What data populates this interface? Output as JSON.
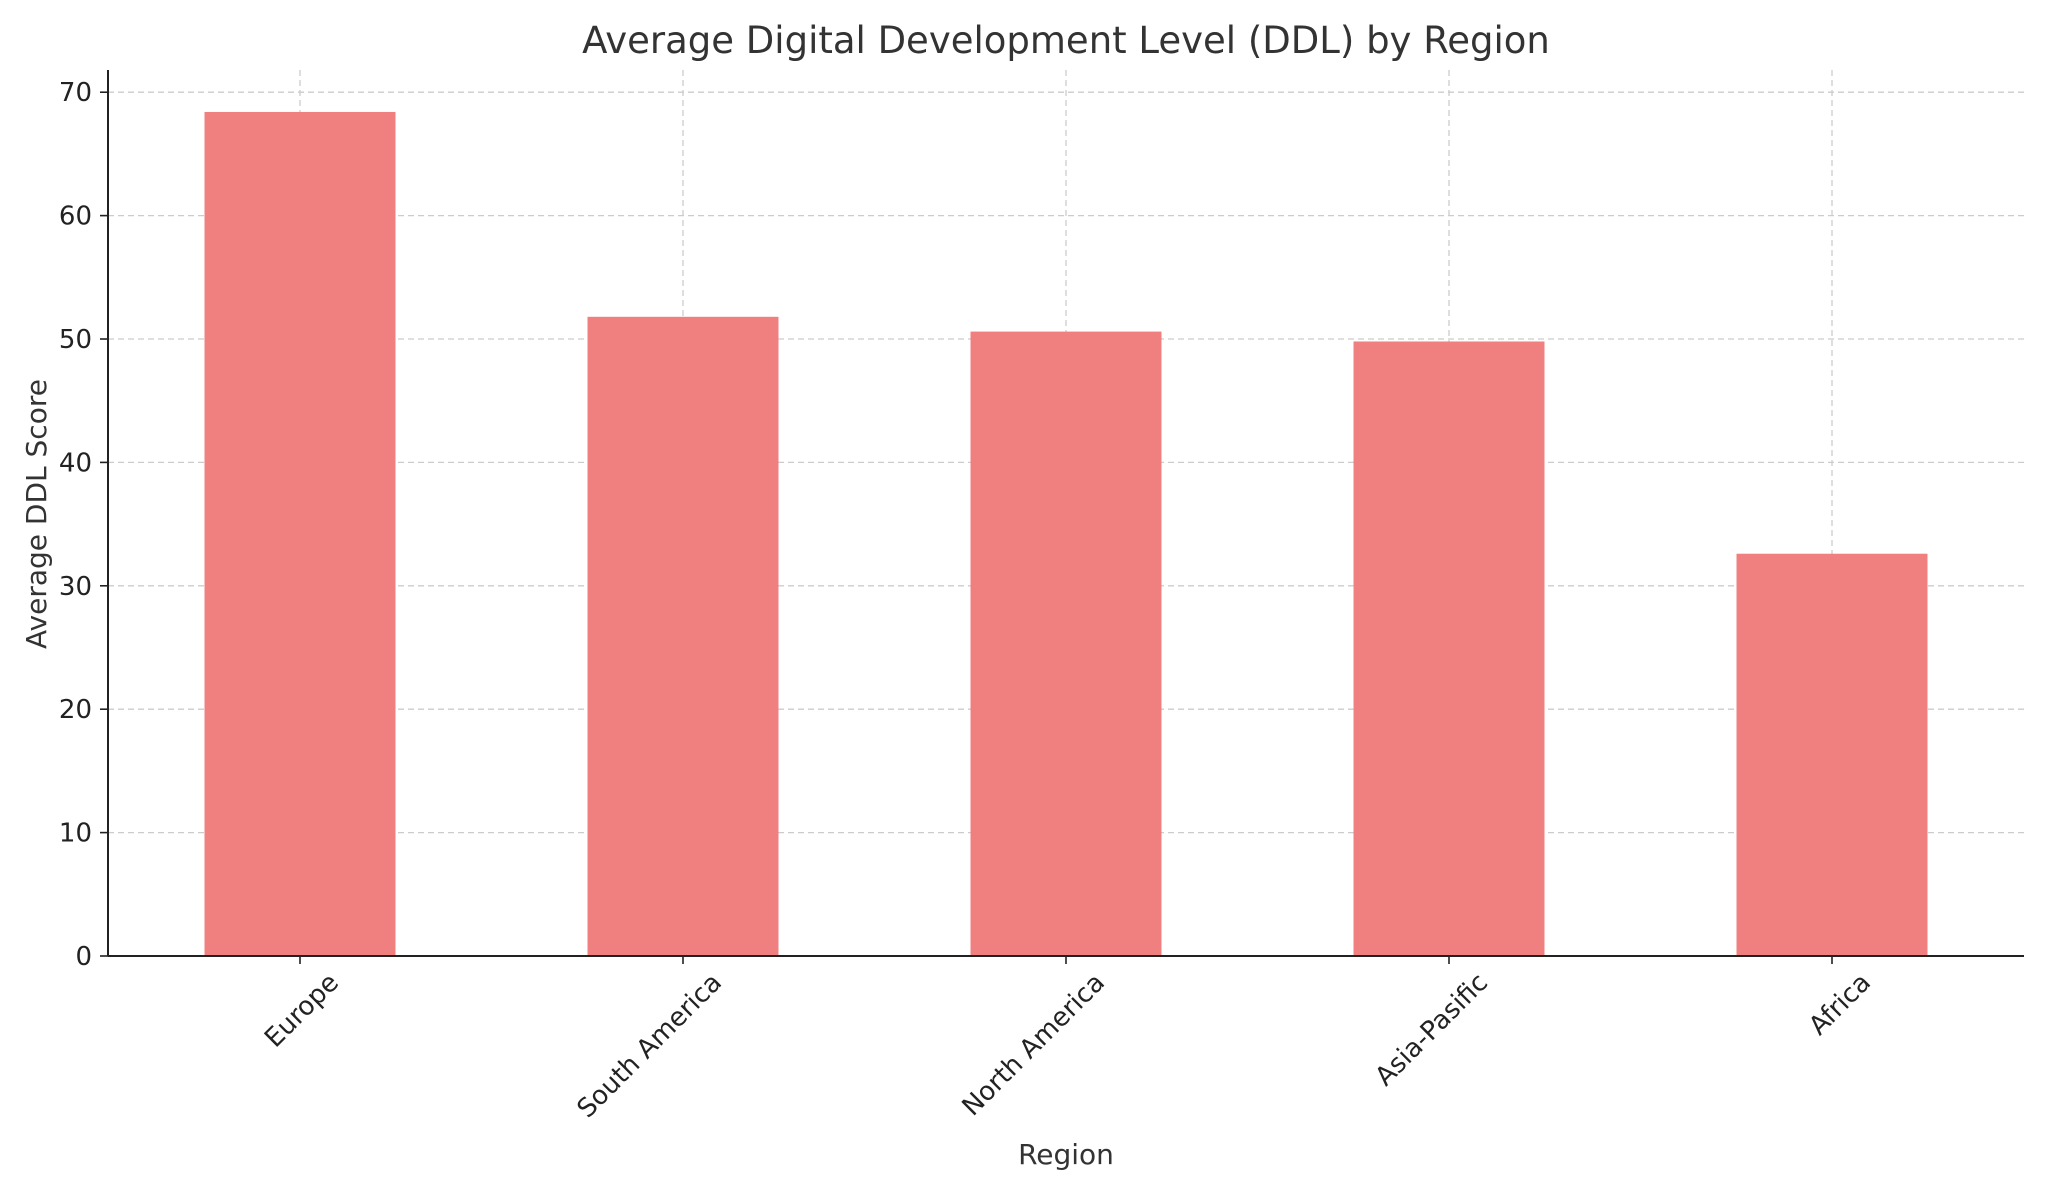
{
  "chart_data": {
    "type": "bar",
    "title": "Average Digital Development Level (DDL) by Region",
    "xlabel": "Region",
    "ylabel": "Average DDL Score",
    "categories": [
      "Europe",
      "South America",
      "North America",
      "Asia-Pasific",
      "Africa"
    ],
    "values": [
      68.4,
      51.8,
      50.6,
      49.8,
      32.6
    ],
    "ylim": [
      0,
      71.8
    ],
    "yticks": [
      0,
      10,
      20,
      30,
      40,
      50,
      60,
      70
    ],
    "grid": true,
    "bar_color": "#f08080",
    "legend": "none"
  }
}
